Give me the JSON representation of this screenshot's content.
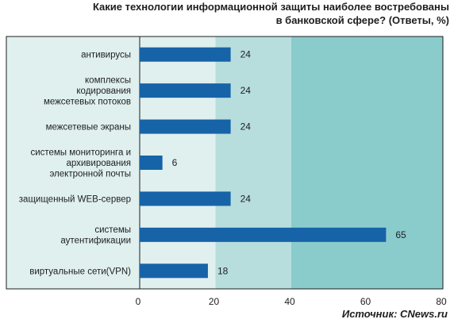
{
  "title": "Какие технологии информационной защиты наиболее востребованы\nв банковской сфере?   (Ответы, %)",
  "source": {
    "label": "Источник:",
    "name": "CNews.ru"
  },
  "colors": {
    "bar": "#1763a8",
    "band_light": "#dff0ef",
    "band_mid": "#b7dedd",
    "band_dark": "#8acbcc",
    "frame": "#1e1e1e"
  },
  "chart_data": {
    "type": "bar",
    "orientation": "horizontal",
    "categories": [
      "антивирусы",
      "комплексы\nкодирования\nмежсетевых потоков",
      "межсетевые экраны",
      "системы мониторинга и\nархивирования\nэлектронной почты",
      "защищенный WEB-сервер",
      "системы\nаутентификации",
      "виртуальные сети(VPN)"
    ],
    "values": [
      24,
      24,
      24,
      6,
      24,
      65,
      18
    ],
    "xlim": [
      0,
      80
    ],
    "xticks": [
      0,
      20,
      40,
      60,
      80
    ],
    "grid": false
  }
}
